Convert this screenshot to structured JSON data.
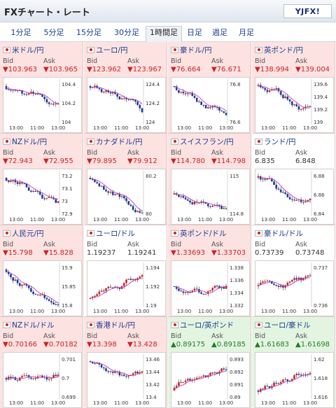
{
  "header": {
    "title": "FXチャート・レート",
    "logo_text": "YJFX!"
  },
  "tabs": [
    {
      "label": "1分足"
    },
    {
      "label": "5分足"
    },
    {
      "label": "15分足"
    },
    {
      "label": "30分足"
    },
    {
      "label": "1時間足"
    },
    {
      "label": "日足"
    },
    {
      "label": "週足"
    },
    {
      "label": "月足"
    }
  ],
  "active_tab": "1時間足",
  "labels": {
    "bid": "Bid",
    "ask": "Ask"
  },
  "pairs": [
    {
      "name": "米ドル/円",
      "trend": "down",
      "bid": "▼103.963",
      "ask": "▼103.965",
      "yticks": [
        "104.4",
        "104.2",
        "104"
      ],
      "xticks": [
        "13:00",
        "11:00",
        "13:00"
      ],
      "path": "down"
    },
    {
      "name": "ユーロ/円",
      "trend": "down",
      "bid": "▼123.962",
      "ask": "▼123.967",
      "yticks": [
        "124.4",
        "124.2",
        "124"
      ],
      "xticks": [
        "13:00",
        "11:00",
        "13:00"
      ],
      "path": "down"
    },
    {
      "name": "豪ドル/円",
      "trend": "down",
      "bid": "▼76.664",
      "ask": "▼76.671",
      "yticks": [
        "76.8",
        "76.6"
      ],
      "xticks": [
        "13:00",
        "11:00",
        "13:00"
      ],
      "path": "down"
    },
    {
      "name": "英ポンド/円",
      "trend": "down",
      "bid": "▼138.994",
      "ask": "▼139.004",
      "yticks": [
        "139.6",
        "139.4",
        "139.2",
        "139"
      ],
      "xticks": [
        "13:00",
        "11:00",
        "13:00"
      ],
      "path": "down"
    },
    {
      "name": "NZドル/円",
      "trend": "down",
      "bid": "▼72.943",
      "ask": "▼72.955",
      "yticks": [
        "73.2",
        "73.1",
        "73",
        "72.9"
      ],
      "xticks": [
        "13:00",
        "11:00",
        "13:00"
      ],
      "path": "down"
    },
    {
      "name": "カナダドル/円",
      "trend": "down",
      "bid": "▼79.895",
      "ask": "▼79.912",
      "yticks": [
        "80.2",
        "80"
      ],
      "xticks": [
        "13:00",
        "11:00",
        "13:00"
      ],
      "path": "down"
    },
    {
      "name": "スイスフラン/円",
      "trend": "down",
      "bid": "▼114.780",
      "ask": "▼114.798",
      "yticks": [
        "115",
        "114.8"
      ],
      "xticks": [
        "13:00",
        "11:00",
        "13:00"
      ],
      "path": "mixed"
    },
    {
      "name": "ランド/円",
      "trend": "flat",
      "bid": "6.835",
      "ask": "6.848",
      "yticks": [
        "6.88",
        "6.86",
        "6.84"
      ],
      "xticks": [
        "13:00",
        "11:00",
        "13:00"
      ],
      "path": "down"
    },
    {
      "name": "人民元/円",
      "trend": "down",
      "bid": "▼15.798",
      "ask": "▼15.828",
      "yticks": [
        "15.9",
        "15.85",
        "15.8"
      ],
      "xticks": [
        "13:00",
        "11:00",
        "13:00"
      ],
      "path": "down"
    },
    {
      "name": "ユーロ/ドル",
      "trend": "flat",
      "bid": "1.19237",
      "ask": "1.19241",
      "yticks": [
        "1.194",
        "1.192",
        "1.19"
      ],
      "xticks": [
        "13:00",
        "11:00",
        "13:00"
      ],
      "path": "up"
    },
    {
      "name": "英ポンド/ドル",
      "trend": "down",
      "bid": "▼1.33693",
      "ask": "▼1.33703",
      "yticks": [
        "1.338",
        "1.336",
        "1.334",
        "1.332"
      ],
      "xticks": [
        "13:00",
        "11:00",
        "13:00"
      ],
      "path": "mixed"
    },
    {
      "name": "豪ドル/ドル",
      "trend": "flat",
      "bid": "0.73739",
      "ask": "0.73748",
      "yticks": [
        "0.737",
        "0.736"
      ],
      "xticks": [
        "13:00",
        "11:00",
        "13:00"
      ],
      "path": "mixed"
    },
    {
      "name": "NZドル/ドル",
      "trend": "down",
      "bid": "▼0.70166",
      "ask": "▼0.70182",
      "yticks": [
        "0.701",
        "0.7",
        "0.699"
      ],
      "xticks": [
        "13:00",
        "11:00",
        "13:00"
      ],
      "path": "mixed"
    },
    {
      "name": "香港ドル/円",
      "trend": "down",
      "bid": "▼13.398",
      "ask": "▼13.428",
      "yticks": [
        "13.46",
        "13.44",
        "13.42",
        "13.4"
      ],
      "xticks": [
        "13:00",
        "11:00",
        "13:00"
      ],
      "path": "down"
    },
    {
      "name": "ユーロ/英ポンド",
      "trend": "up",
      "bid": "▲0.89175",
      "ask": "▲0.89185",
      "yticks": [
        "0.893",
        "0.892",
        "0.891",
        "0.89"
      ],
      "xticks": [
        "13:00",
        "11:00",
        "13:00"
      ],
      "path": "up"
    },
    {
      "name": "ユーロ/豪ドル",
      "trend": "up",
      "bid": "▲1.61683",
      "ask": "▲1.61698",
      "yticks": [
        "1.62",
        "1.618",
        "1.616"
      ],
      "xticks": [
        "13:00",
        "11:00",
        "13:00"
      ],
      "path": "up"
    }
  ]
}
